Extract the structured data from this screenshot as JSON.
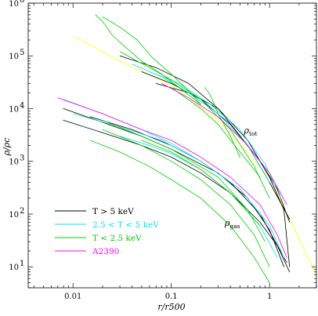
{
  "chart_data": {
    "type": "line",
    "title": "",
    "xlabel": "r/r500",
    "ylabel": "ρ/ρc",
    "x_scale": "log",
    "y_scale": "log",
    "xlim": [
      0.0035,
      3
    ],
    "ylim": [
      4,
      1000000
    ],
    "x_ticks": [
      {
        "value": 0.01,
        "label": "0.01"
      },
      {
        "value": 0.1,
        "label": "0.1"
      },
      {
        "value": 1,
        "label": "1"
      }
    ],
    "y_ticks": [
      {
        "value": 10,
        "mant": "10",
        "exp": "1"
      },
      {
        "value": 100,
        "mant": "10",
        "exp": "2"
      },
      {
        "value": 1000,
        "mant": "10",
        "exp": "3"
      },
      {
        "value": 10000,
        "mant": "10",
        "exp": "4"
      },
      {
        "value": 100000,
        "mant": "10",
        "exp": "5"
      },
      {
        "value": 1000000,
        "mant": "10",
        "exp": "6"
      }
    ],
    "annotations": [
      {
        "text": "ρtot",
        "main": "ρ",
        "sub": "tot",
        "x": 0.55,
        "y": 3400
      },
      {
        "text": "ρgas",
        "main": "ρ",
        "sub": "gas",
        "x": 0.35,
        "y": 60
      }
    ],
    "legend": {
      "placement": "bottom-left",
      "entries": [
        {
          "label": "T > 5 keV",
          "color": "#000000"
        },
        {
          "label": "2.5 < T < 5 keV",
          "color": "#00e5ee"
        },
        {
          "label": "T < 2.5 keV",
          "color": "#00cd00"
        },
        {
          "label": "A2390",
          "color": "#ff00ff"
        }
      ]
    },
    "series": [
      {
        "group": "fit",
        "color": "#ffff00",
        "width": 4,
        "x": [
          0.01,
          0.03,
          0.1,
          0.3,
          1,
          3
        ],
        "y": [
          240000,
          80000,
          28000,
          6000,
          500,
          7
        ]
      },
      {
        "group": "tot",
        "color": "#000000",
        "x": [
          0.03,
          0.07,
          0.15,
          0.3,
          0.6,
          1.0,
          1.4,
          1.6
        ],
        "y": [
          100000,
          60000,
          30000,
          10000,
          2500,
          500,
          120,
          10
        ]
      },
      {
        "group": "tot",
        "color": "#000000",
        "x": [
          0.07,
          0.15,
          0.3,
          0.6,
          1.0,
          1.6
        ],
        "y": [
          30000,
          20000,
          10000,
          2000,
          400,
          80
        ]
      },
      {
        "group": "tot",
        "color": "#000000",
        "x": [
          0.05,
          0.1,
          0.2,
          0.4,
          0.8,
          1.2,
          1.6
        ],
        "y": [
          50000,
          30000,
          15000,
          5000,
          1000,
          300,
          70
        ]
      },
      {
        "group": "tot",
        "color": "#00e5ee",
        "x": [
          0.04,
          0.08,
          0.15,
          0.3,
          0.6,
          1.0
        ],
        "y": [
          70000,
          40000,
          20000,
          8000,
          2000,
          400
        ]
      },
      {
        "group": "tot",
        "color": "#00e5ee",
        "x": [
          0.06,
          0.12,
          0.25,
          0.5,
          0.9,
          1.3
        ],
        "y": [
          50000,
          30000,
          12000,
          4000,
          900,
          200
        ]
      },
      {
        "group": "tot",
        "color": "#00cd00",
        "x": [
          0.017,
          0.02,
          0.025,
          0.035,
          0.05,
          0.08,
          0.12,
          0.2
        ],
        "y": [
          600000,
          450000,
          250000,
          140000,
          80000,
          45000,
          25000,
          12000
        ]
      },
      {
        "group": "tot",
        "color": "#00cd00",
        "x": [
          0.02,
          0.03,
          0.045,
          0.065,
          0.1,
          0.15,
          0.2
        ],
        "y": [
          550000,
          350000,
          200000,
          90000,
          45000,
          22000,
          12000
        ]
      },
      {
        "group": "tot",
        "color": "#00cd00",
        "x": [
          0.03,
          0.06,
          0.1,
          0.2,
          0.4,
          0.7,
          1.0
        ],
        "y": [
          120000,
          60000,
          35000,
          15000,
          4000,
          800,
          200
        ]
      },
      {
        "group": "tot",
        "color": "#00cd00",
        "x": [
          0.1,
          0.2,
          0.3,
          0.5,
          0.8
        ],
        "y": [
          25000,
          10000,
          5000,
          1500,
          500
        ]
      },
      {
        "group": "tot",
        "color": "#00cd00",
        "x": [
          0.22,
          0.25,
          0.3,
          0.4,
          0.5
        ],
        "y": [
          25000,
          18000,
          8000,
          3000,
          1200
        ]
      },
      {
        "group": "tot",
        "color": "#ff00ff",
        "x": [
          0.08,
          0.15,
          0.3,
          0.6,
          1.0,
          1.5
        ],
        "y": [
          30000,
          16000,
          7000,
          2000,
          600,
          150
        ]
      },
      {
        "group": "gas",
        "color": "#000000",
        "x": [
          0.008,
          0.02,
          0.05,
          0.1,
          0.2,
          0.4,
          0.8,
          1.2,
          1.6
        ],
        "y": [
          6000,
          3500,
          2000,
          1200,
          600,
          250,
          70,
          25,
          8
        ]
      },
      {
        "group": "gas",
        "color": "#000000",
        "x": [
          0.008,
          0.02,
          0.05,
          0.1,
          0.3,
          0.6,
          1.0,
          1.4
        ],
        "y": [
          10000,
          5500,
          3000,
          1700,
          600,
          200,
          50,
          10
        ]
      },
      {
        "group": "gas",
        "color": "#000000",
        "x": [
          0.015,
          0.04,
          0.1,
          0.2,
          0.4,
          0.8,
          1.5
        ],
        "y": [
          7000,
          4000,
          2000,
          1000,
          400,
          100,
          12
        ]
      },
      {
        "group": "gas",
        "color": "#00e5ee",
        "x": [
          0.008,
          0.02,
          0.05,
          0.1,
          0.2,
          0.5,
          1.0
        ],
        "y": [
          15000,
          8000,
          4000,
          2200,
          1000,
          300,
          60
        ]
      },
      {
        "group": "gas",
        "color": "#00e5ee",
        "x": [
          0.01,
          0.03,
          0.08,
          0.2,
          0.5,
          1.0,
          1.4
        ],
        "y": [
          8000,
          4500,
          2500,
          1000,
          300,
          60,
          15
        ]
      },
      {
        "group": "gas",
        "color": "#00e5ee",
        "x": [
          0.03,
          0.06,
          0.1,
          0.2,
          0.4,
          0.8,
          1.2
        ],
        "y": [
          3000,
          2000,
          1400,
          700,
          250,
          60,
          15
        ]
      },
      {
        "group": "gas",
        "color": "#00cd00",
        "x": [
          0.015,
          0.03,
          0.06,
          0.1,
          0.2,
          0.4,
          0.7,
          1.0
        ],
        "y": [
          2500,
          1500,
          800,
          450,
          200,
          60,
          15,
          5
        ]
      },
      {
        "group": "gas",
        "color": "#00cd00",
        "x": [
          0.02,
          0.05,
          0.1,
          0.2,
          0.4,
          0.7,
          1.0
        ],
        "y": [
          4000,
          2000,
          1000,
          450,
          150,
          40,
          10
        ]
      },
      {
        "group": "gas",
        "color": "#00cd00",
        "x": [
          0.02,
          0.05,
          0.1,
          0.3,
          0.6,
          0.9
        ],
        "y": [
          6000,
          3000,
          1700,
          500,
          120,
          30
        ]
      },
      {
        "group": "gas",
        "color": "#00cd00",
        "x": [
          0.05,
          0.1,
          0.2,
          0.4,
          0.8
        ],
        "y": [
          2500,
          1500,
          700,
          250,
          60
        ]
      },
      {
        "group": "gas",
        "color": "#ff00ff",
        "x": [
          0.007,
          0.02,
          0.05,
          0.1,
          0.2,
          0.4,
          0.8,
          1.2,
          1.5
        ],
        "y": [
          16000,
          8000,
          4000,
          2500,
          1200,
          500,
          150,
          40,
          15
        ]
      }
    ]
  }
}
